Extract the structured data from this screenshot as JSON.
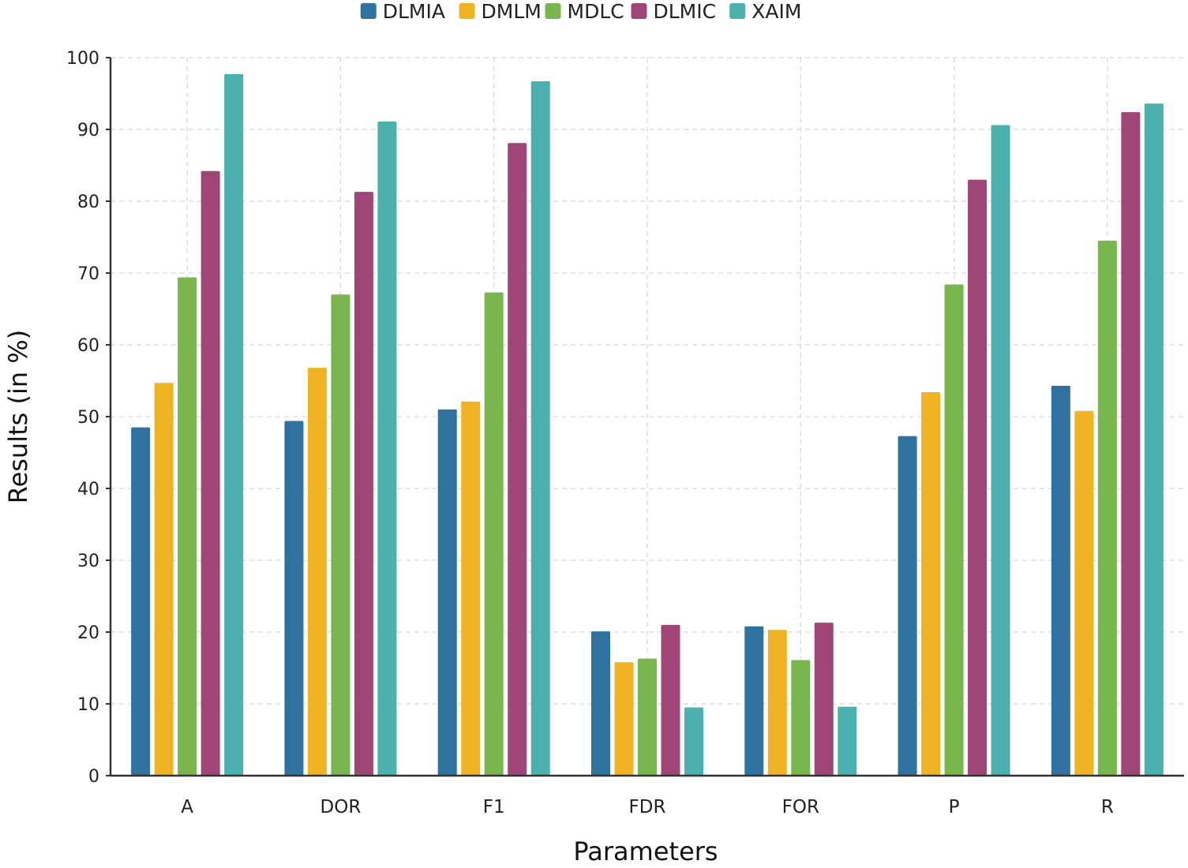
{
  "chart_data": {
    "type": "bar",
    "title": "",
    "xlabel": "Parameters",
    "ylabel": "Results (in %)",
    "ylim": [
      0,
      100
    ],
    "yticks": [
      0,
      10,
      20,
      30,
      40,
      50,
      60,
      70,
      80,
      90,
      100
    ],
    "grid": true,
    "legend_position": "top",
    "categories": [
      "A",
      "DOR",
      "F1",
      "FDR",
      "FOR",
      "P",
      "R"
    ],
    "series": [
      {
        "name": "DLMIA",
        "color": "#2f72a0",
        "values": [
          48.5,
          49.4,
          51.0,
          20.1,
          20.8,
          47.3,
          54.3
        ]
      },
      {
        "name": "DMLM",
        "color": "#f0b323",
        "values": [
          54.7,
          56.8,
          52.1,
          15.8,
          20.3,
          53.4,
          50.8
        ]
      },
      {
        "name": "MDLC",
        "color": "#7ab64e",
        "values": [
          69.4,
          67.0,
          67.3,
          16.3,
          16.1,
          68.4,
          74.5
        ]
      },
      {
        "name": "DLMIC",
        "color": "#a04677",
        "values": [
          84.2,
          81.3,
          88.1,
          21.0,
          21.3,
          83.0,
          92.4
        ]
      },
      {
        "name": "XAIM",
        "color": "#4bb0ae",
        "values": [
          97.7,
          91.1,
          96.7,
          9.5,
          9.6,
          90.6,
          93.6
        ]
      }
    ]
  }
}
